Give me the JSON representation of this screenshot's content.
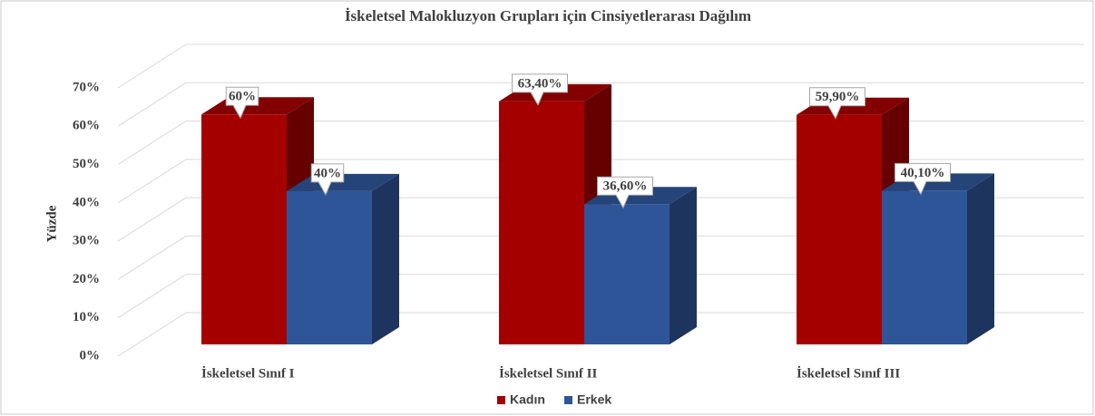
{
  "chart_data": {
    "type": "bar3d",
    "title": "İskeletsel Malokluzyon Grupları için Cinsiyetlerarası Dağılım",
    "ylabel": "Yüzde",
    "categories": [
      "İskeletsel Sınıf I",
      "İskeletsel Sınıf II",
      "İskeletsel Sınıf III"
    ],
    "series": [
      {
        "name": "Kadın",
        "color": "#a50000",
        "values": [
          60,
          63.4,
          59.9
        ],
        "value_labels": [
          "60%",
          "63,40%",
          "59,90%"
        ]
      },
      {
        "name": "Erkek",
        "color": "#2e5597",
        "values": [
          40,
          36.6,
          40.1
        ],
        "value_labels": [
          "40%",
          "36,60%",
          "40,10%"
        ]
      }
    ],
    "ylim": [
      0,
      70
    ],
    "yticks": [
      {
        "value": 0,
        "label": "0%"
      },
      {
        "value": 10,
        "label": "10%"
      },
      {
        "value": 20,
        "label": "20%"
      },
      {
        "value": 30,
        "label": "30%"
      },
      {
        "value": 40,
        "label": "40%"
      },
      {
        "value": 50,
        "label": "50%"
      },
      {
        "value": 60,
        "label": "60%"
      },
      {
        "value": 70,
        "label": "70%"
      }
    ],
    "grid": true,
    "legend": "bottom"
  }
}
